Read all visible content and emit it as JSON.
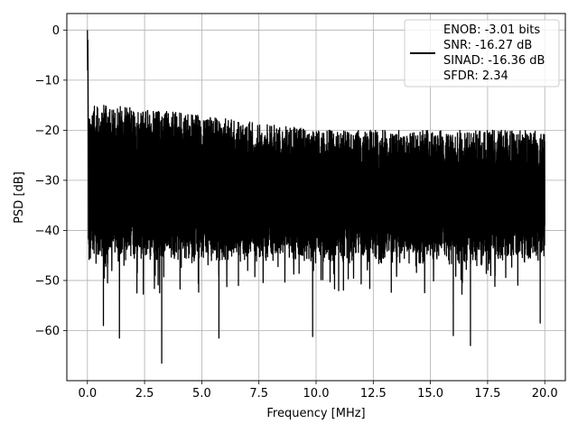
{
  "chart_data": {
    "type": "line",
    "title": "",
    "xlabel": "Frequency [MHz]",
    "ylabel": "PSD [dB]",
    "xlim": [
      -0.9,
      20.9
    ],
    "ylim": [
      -70,
      3.3
    ],
    "x_ticks": [
      0.0,
      2.5,
      5.0,
      7.5,
      10.0,
      12.5,
      15.0,
      17.5,
      20.0
    ],
    "x_tick_labels": [
      "0.0",
      "2.5",
      "5.0",
      "7.5",
      "10.0",
      "12.5",
      "15.0",
      "17.5",
      "20.0"
    ],
    "y_ticks": [
      0,
      -10,
      -20,
      -30,
      -40,
      -50,
      -60
    ],
    "y_tick_labels": [
      "0",
      "−10",
      "−20",
      "−30",
      "−40",
      "−50",
      "−60"
    ],
    "grid": true,
    "legend_position": "top-right",
    "series": [
      {
        "name": "ENOB: -3.01 bits\nSNR: -16.27 dB\nSINAD: -16.36 dB\nSFDR: 2.34",
        "legend_lines": [
          "ENOB: -3.01 bits",
          "SNR: -16.27 dB",
          "SINAD: -16.36 dB",
          "SFDR: 2.34"
        ],
        "color": "#000000",
        "description": "noise-like PSD spectrum",
        "peak": {
          "x": 0.0,
          "y": 0.0
        },
        "x_range": [
          0.0,
          20.0
        ],
        "upper_envelope": {
          "x": [
            0.05,
            1.0,
            5.0,
            10.0,
            15.0,
            20.0
          ],
          "y": [
            -15,
            -15,
            -17,
            -20,
            -20,
            -20
          ]
        },
        "lower_envelope_typical": -43,
        "notable_dips": [
          {
            "x": 0.7,
            "y": -59
          },
          {
            "x": 1.4,
            "y": -61.5
          },
          {
            "x": 3.25,
            "y": -66.5
          },
          {
            "x": 5.75,
            "y": -61.5
          },
          {
            "x": 9.85,
            "y": -61.2
          },
          {
            "x": 16.0,
            "y": -61
          },
          {
            "x": 16.75,
            "y": -63
          },
          {
            "x": 19.8,
            "y": -58.5
          }
        ]
      }
    ]
  }
}
